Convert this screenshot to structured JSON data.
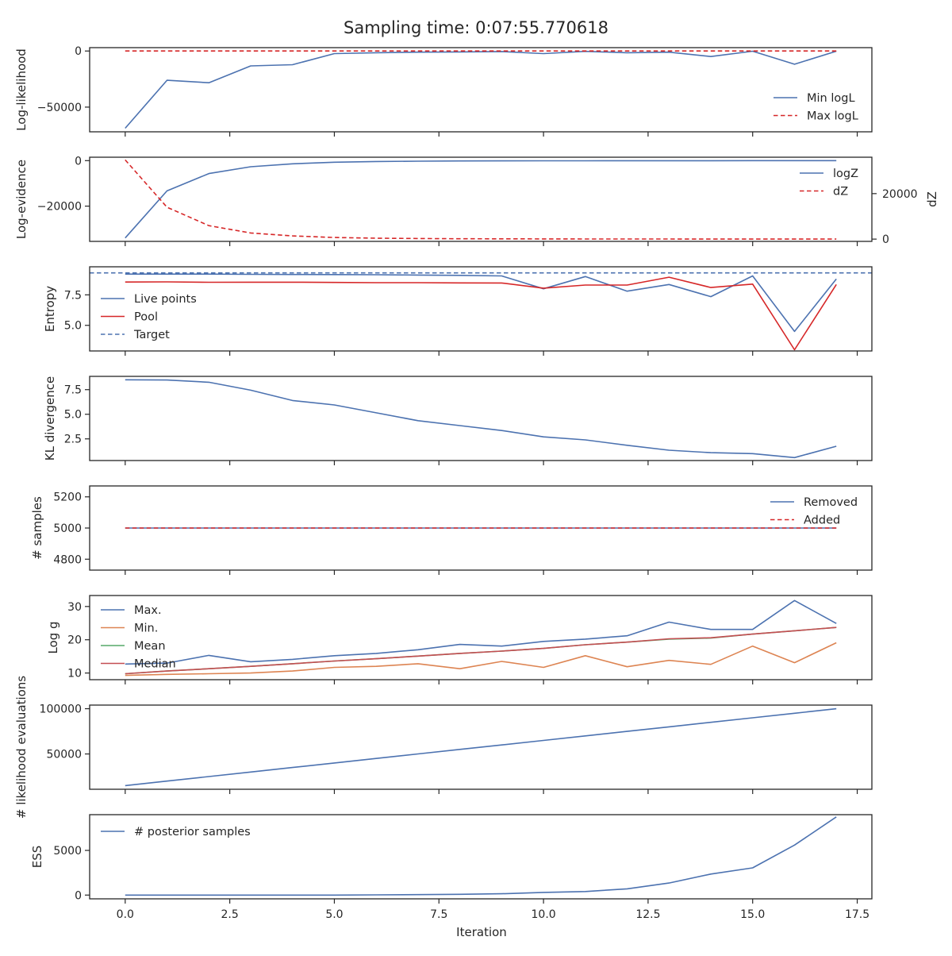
{
  "figure": {
    "title": "Sampling time: 0:07:55.770618",
    "xlabel": "Iteration",
    "x_ticks": [
      0.0,
      2.5,
      5.0,
      7.5,
      10.0,
      12.5,
      15.0,
      17.5
    ],
    "x_tick_labels": [
      "0.0",
      "2.5",
      "5.0",
      "7.5",
      "10.0",
      "12.5",
      "15.0",
      "17.5"
    ],
    "xlim": [
      -0.85,
      17.85
    ]
  },
  "chart_data": [
    {
      "type": "line",
      "ylabel": "Log-likelihood",
      "ylim": [
        -72000,
        3000
      ],
      "y_ticks": [
        0,
        -50000
      ],
      "y_tick_labels": [
        "0",
        "−50000"
      ],
      "legend": "lower-right",
      "x": [
        0,
        1,
        2,
        3,
        4,
        5,
        6,
        7,
        8,
        9,
        10,
        11,
        12,
        13,
        14,
        15,
        16,
        17
      ],
      "series": [
        {
          "name": "Min logL",
          "color": "#4c72b0",
          "dash": false,
          "values": [
            -68800,
            -26100,
            -28300,
            -13300,
            -12200,
            -2300,
            -1500,
            -1000,
            -800,
            -500,
            -2300,
            -300,
            -1500,
            -1000,
            -4900,
            -200,
            -11800,
            -200
          ]
        },
        {
          "name": "Max logL",
          "color": "#d62728",
          "dash": true,
          "values": [
            0,
            0,
            0,
            0,
            0,
            0,
            0,
            0,
            0,
            0,
            0,
            0,
            0,
            0,
            0,
            0,
            0,
            0
          ]
        }
      ]
    },
    {
      "type": "line",
      "ylabel": "Log-evidence",
      "ylim": [
        -35500,
        1500
      ],
      "y_ticks": [
        0,
        -20000
      ],
      "y_tick_labels": [
        "0",
        "−20000"
      ],
      "y2label": "dZ",
      "y2lim": [
        -1000,
        36000
      ],
      "y2_ticks": [
        0,
        20000
      ],
      "y2_tick_labels": [
        "0",
        "20000"
      ],
      "legend": "upper-right",
      "x": [
        0,
        1,
        2,
        3,
        4,
        5,
        6,
        7,
        8,
        9,
        10,
        11,
        12,
        13,
        14,
        15,
        16,
        17
      ],
      "series": [
        {
          "name": "logZ",
          "color": "#4c72b0",
          "dash": false,
          "axis": "left",
          "values": [
            -34000,
            -13300,
            -5700,
            -2700,
            -1400,
            -700,
            -400,
            -250,
            -150,
            -100,
            -80,
            -60,
            -40,
            -30,
            -20,
            -15,
            -10,
            -10
          ]
        },
        {
          "name": "dZ",
          "color": "#d62728",
          "dash": true,
          "axis": "right",
          "values": [
            34800,
            14000,
            5900,
            2700,
            1400,
            700,
            400,
            250,
            150,
            100,
            80,
            60,
            40,
            30,
            20,
            15,
            10,
            10
          ]
        }
      ]
    },
    {
      "type": "line",
      "ylabel": "Entropy",
      "ylim": [
        2.9,
        9.8
      ],
      "y_ticks": [
        7.5,
        5.0
      ],
      "y_tick_labels": [
        "7.5",
        "5.0"
      ],
      "legend": "lower-left",
      "x": [
        0,
        1,
        2,
        3,
        4,
        5,
        6,
        7,
        8,
        9,
        10,
        11,
        12,
        13,
        14,
        15,
        16,
        17
      ],
      "series": [
        {
          "name": "Live points",
          "color": "#4c72b0",
          "dash": false,
          "values": [
            9.2,
            9.2,
            9.2,
            9.18,
            9.17,
            9.16,
            9.15,
            9.12,
            9.1,
            9.05,
            8.0,
            9.0,
            7.8,
            8.35,
            7.35,
            9.05,
            4.5,
            8.8
          ]
        },
        {
          "name": "Pool",
          "color": "#d62728",
          "dash": false,
          "values": [
            8.55,
            8.56,
            8.53,
            8.54,
            8.54,
            8.52,
            8.5,
            8.5,
            8.48,
            8.47,
            8.05,
            8.3,
            8.3,
            8.95,
            8.1,
            8.38,
            3.0,
            8.35
          ]
        },
        {
          "name": "Target",
          "color": "#4c72b0",
          "dash": true,
          "hline": 9.3
        }
      ]
    },
    {
      "type": "line",
      "ylabel": "KL divergence",
      "ylim": [
        0.3,
        8.85
      ],
      "y_ticks": [
        7.5,
        5.0,
        2.5
      ],
      "y_tick_labels": [
        "7.5",
        "5.0",
        "2.5"
      ],
      "x": [
        0,
        1,
        2,
        3,
        4,
        5,
        6,
        7,
        8,
        9,
        10,
        11,
        12,
        13,
        14,
        15,
        16,
        17
      ],
      "series": [
        {
          "name": "",
          "color": "#4c72b0",
          "dash": false,
          "values": [
            8.5,
            8.48,
            8.25,
            7.45,
            6.4,
            5.95,
            5.15,
            4.35,
            3.85,
            3.35,
            2.7,
            2.4,
            1.85,
            1.35,
            1.1,
            1.0,
            0.6,
            1.75
          ]
        }
      ]
    },
    {
      "type": "line",
      "ylabel": "# samples",
      "ylim": [
        4730,
        5270
      ],
      "y_ticks": [
        5200,
        5000,
        4800
      ],
      "y_tick_labels": [
        "5200",
        "5000",
        "4800"
      ],
      "legend": "upper-right",
      "x": [
        0,
        1,
        2,
        3,
        4,
        5,
        6,
        7,
        8,
        9,
        10,
        11,
        12,
        13,
        14,
        15,
        16,
        17
      ],
      "series": [
        {
          "name": "Removed",
          "color": "#4c72b0",
          "dash": false,
          "values": [
            5000,
            5000,
            5000,
            5000,
            5000,
            5000,
            5000,
            5000,
            5000,
            5000,
            5000,
            5000,
            5000,
            5000,
            5000,
            5000,
            5000,
            5000
          ]
        },
        {
          "name": "Added",
          "color": "#d62728",
          "dash": true,
          "values": [
            5000,
            5000,
            5000,
            5000,
            5000,
            5000,
            5000,
            5000,
            5000,
            5000,
            5000,
            5000,
            5000,
            5000,
            5000,
            5000,
            5000,
            5000
          ]
        }
      ]
    },
    {
      "type": "line",
      "ylabel": "Log g",
      "ylim": [
        8.0,
        33.3
      ],
      "y_ticks": [
        30,
        20,
        10
      ],
      "y_tick_labels": [
        "30",
        "20",
        "10"
      ],
      "legend": "upper-left",
      "x": [
        0,
        1,
        2,
        3,
        4,
        5,
        6,
        7,
        8,
        9,
        10,
        11,
        12,
        13,
        14,
        15,
        16,
        17
      ],
      "series": [
        {
          "name": "Max.",
          "color": "#4c72b0",
          "dash": false,
          "values": [
            12.7,
            13.0,
            15.3,
            13.4,
            14.1,
            15.2,
            15.9,
            17.0,
            18.6,
            18.1,
            19.5,
            20.2,
            21.2,
            25.3,
            23.1,
            23.1,
            31.8,
            24.9
          ]
        },
        {
          "name": "Min.",
          "color": "#dd8452",
          "dash": false,
          "values": [
            9.3,
            9.6,
            9.8,
            10.0,
            10.6,
            11.7,
            12.0,
            12.8,
            11.3,
            13.5,
            11.7,
            15.2,
            11.9,
            13.8,
            12.6,
            18.1,
            13.1,
            19.1
          ]
        },
        {
          "name": "Mean",
          "color": "#55a868",
          "dash": false,
          "values": [
            9.8,
            10.6,
            11.3,
            12.0,
            12.8,
            13.6,
            14.3,
            15.1,
            15.9,
            16.6,
            17.4,
            18.5,
            19.3,
            20.2,
            20.5,
            21.7,
            22.7,
            23.7
          ]
        },
        {
          "name": "Median",
          "color": "#c44e52",
          "dash": false,
          "values": [
            9.8,
            10.6,
            11.3,
            12.0,
            12.8,
            13.6,
            14.3,
            15.1,
            15.9,
            16.6,
            17.4,
            18.5,
            19.3,
            20.3,
            20.6,
            21.7,
            22.7,
            23.7
          ]
        }
      ]
    },
    {
      "type": "line",
      "ylabel": "# likelihood evaluations",
      "ylim": [
        11000,
        104000
      ],
      "y_ticks": [
        100000,
        50000
      ],
      "y_tick_labels": [
        "100000",
        "50000"
      ],
      "x": [
        0,
        1,
        2,
        3,
        4,
        5,
        6,
        7,
        8,
        9,
        10,
        11,
        12,
        13,
        14,
        15,
        16,
        17
      ],
      "series": [
        {
          "name": "",
          "color": "#4c72b0",
          "dash": false,
          "values": [
            15000,
            20000,
            25000,
            30000,
            35000,
            40000,
            45000,
            50000,
            55000,
            60000,
            65000,
            70000,
            75000,
            80000,
            85000,
            90000,
            95000,
            100000
          ]
        }
      ]
    },
    {
      "type": "line",
      "ylabel": "ESS",
      "ylim": [
        -420,
        9000
      ],
      "y_ticks": [
        5000,
        0
      ],
      "y_tick_labels": [
        "5000",
        "0"
      ],
      "legend": "upper-left",
      "x": [
        0,
        1,
        2,
        3,
        4,
        5,
        6,
        7,
        8,
        9,
        10,
        11,
        12,
        13,
        14,
        15,
        16,
        17
      ],
      "series": [
        {
          "name": "# posterior samples",
          "color": "#4c72b0",
          "dash": false,
          "values": [
            0,
            0,
            0,
            0,
            0,
            0,
            20,
            50,
            90,
            150,
            300,
            400,
            700,
            1350,
            2350,
            3050,
            5600,
            8750
          ]
        }
      ]
    }
  ]
}
